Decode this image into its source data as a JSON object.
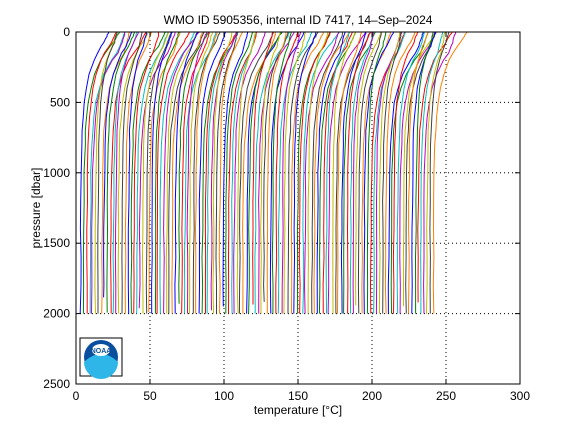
{
  "chart_data": {
    "type": "line",
    "title": "WMO ID 5905356, internal ID 7417, 14–Sep–2024",
    "xlabel": "temperature [°C]",
    "ylabel": "pressure [dbar]",
    "xlim": [
      0,
      300
    ],
    "ylim": [
      0,
      2500
    ],
    "y_reversed": true,
    "grid": true,
    "xticks": [
      0,
      50,
      100,
      150,
      200,
      250,
      300
    ],
    "yticks": [
      0,
      500,
      1000,
      1500,
      2000,
      2500
    ],
    "profile_count_estimate": 120,
    "profile_x_offset_step": 2,
    "profile_deep_value_range": [
      2.5,
      3.5
    ],
    "profile_surface_value_range": [
      15,
      28
    ],
    "profile_max_pressure": 2000,
    "series_colors": [
      "#0000ff",
      "#008000",
      "#ff0000",
      "#00bfbf",
      "#bf00bf",
      "#bfbf00",
      "#404040",
      "#ff8000"
    ]
  },
  "logo": {
    "name": "NOAA",
    "text": "NOAA"
  }
}
